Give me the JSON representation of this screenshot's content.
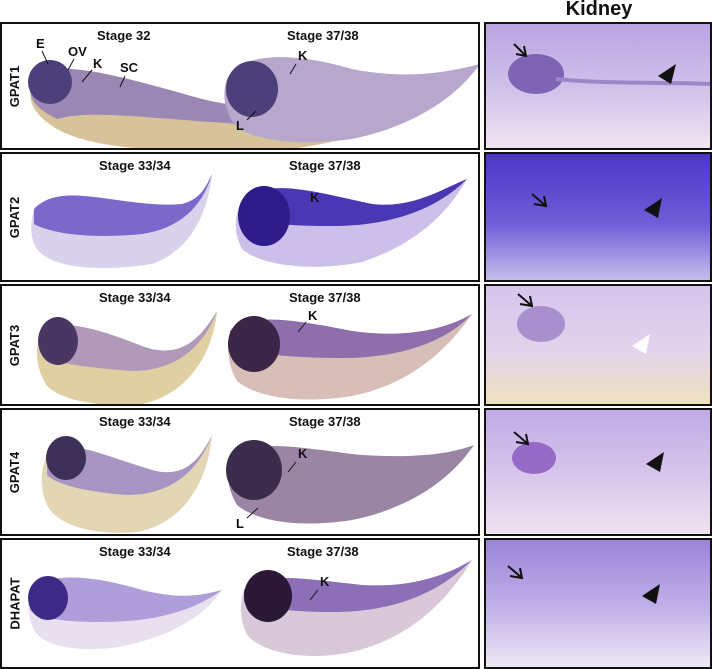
{
  "column_title": "Kidney",
  "rows": [
    {
      "gene": "GPAT1",
      "stage_left": "Stage 32",
      "stage_right": "Stage 37/38",
      "labels": {
        "E": "E",
        "OV": "OV",
        "K": "K",
        "SC": "SC",
        "K2": "K",
        "L": "L"
      },
      "colors": {
        "head": "#4d3f79",
        "trunk": "#8f7db8",
        "yolk": "#d8c29a",
        "kidney_bg": "#c9b8e6"
      }
    },
    {
      "gene": "GPAT2",
      "stage_left": "Stage 33/34",
      "stage_right": "Stage 37/38",
      "labels": {
        "K2": "K"
      },
      "colors": {
        "head": "#2d1c8a",
        "trunk": "#6b56c4",
        "yolk": "#d9d2ec",
        "kidney_bg": "#6b5ad6"
      }
    },
    {
      "gene": "GPAT3",
      "stage_left": "Stage 33/34",
      "stage_right": "Stage 37/38",
      "labels": {
        "K2": "K"
      },
      "colors": {
        "head": "#4a3663",
        "trunk": "#a58bbf",
        "yolk": "#e0cfa2",
        "kidney_bg": "#dac8ec"
      }
    },
    {
      "gene": "GPAT4",
      "stage_left": "Stage 33/34",
      "stage_right": "Stage 37/38",
      "labels": {
        "K2": "K",
        "L": "L"
      },
      "colors": {
        "head": "#3d3058",
        "trunk": "#9c88c4",
        "yolk": "#e3d6b4",
        "kidney_bg": "#c4afe6"
      }
    },
    {
      "gene": "DHAPAT",
      "stage_left": "Stage 33/34",
      "stage_right": "Stage 37/38",
      "labels": {
        "K2": "K"
      },
      "colors": {
        "head": "#3d2a86",
        "trunk": "#a492d6",
        "yolk": "#e8e0ee",
        "kidney_bg": "#bba8ea"
      }
    }
  ]
}
